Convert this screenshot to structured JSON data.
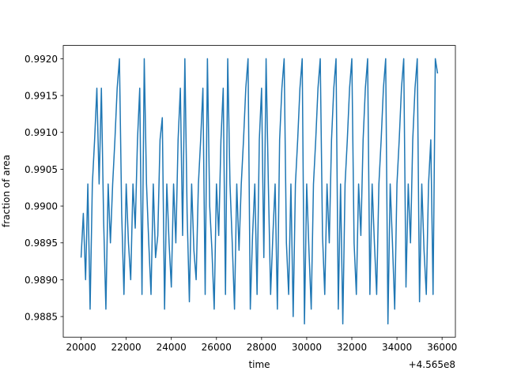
{
  "chart_data": {
    "type": "line",
    "xlabel": "time",
    "ylabel": "fraction of area",
    "x_offset_label": "+4.565e8",
    "xlim": [
      19210,
      36590
    ],
    "ylim": [
      0.98822,
      0.99218
    ],
    "xticks": [
      20000,
      22000,
      24000,
      26000,
      28000,
      30000,
      32000,
      34000,
      36000
    ],
    "yticks": [
      0.9885,
      {
        "value": 0.989,
        "label": "0.9890"
      },
      0.9895,
      {
        "value": 0.99,
        "label": "0.9900"
      },
      0.9905,
      {
        "value": 0.991,
        "label": "0.9910"
      },
      0.9915,
      {
        "value": 0.992,
        "label": "0.9920"
      }
    ],
    "grid": false,
    "series": [
      {
        "color": "#1f77b4",
        "x": [
          20000,
          20100,
          20200,
          20300,
          20400,
          20500,
          20600,
          20700,
          20800,
          20900,
          21000,
          21100,
          21200,
          21300,
          21400,
          21500,
          21600,
          21700,
          21800,
          21900,
          22000,
          22100,
          22200,
          22300,
          22400,
          22500,
          22600,
          22700,
          22800,
          22900,
          23000,
          23100,
          23200,
          23300,
          23400,
          23500,
          23600,
          23700,
          23800,
          23900,
          24000,
          24100,
          24200,
          24300,
          24400,
          24500,
          24600,
          24700,
          24800,
          24900,
          25000,
          25100,
          25200,
          25300,
          25400,
          25500,
          25600,
          25700,
          25800,
          25900,
          26000,
          26100,
          26200,
          26300,
          26400,
          26500,
          26600,
          26700,
          26800,
          26900,
          27000,
          27100,
          27200,
          27300,
          27400,
          27500,
          27600,
          27700,
          27800,
          27900,
          28000,
          28100,
          28200,
          28300,
          28400,
          28500,
          28600,
          28700,
          28800,
          28900,
          29000,
          29100,
          29200,
          29300,
          29400,
          29500,
          29600,
          29700,
          29800,
          29900,
          30000,
          30100,
          30200,
          30300,
          30400,
          30500,
          30600,
          30700,
          30800,
          30900,
          31000,
          31100,
          31200,
          31300,
          31400,
          31500,
          31600,
          31700,
          31800,
          31900,
          32000,
          32100,
          32200,
          32300,
          32400,
          32500,
          32600,
          32700,
          32800,
          32900,
          33000,
          33100,
          33200,
          33300,
          33400,
          33500,
          33600,
          33700,
          33800,
          33900,
          34000,
          34100,
          34200,
          34300,
          34400,
          34500,
          34600,
          34700,
          34800,
          34900,
          35000,
          35100,
          35200,
          35300,
          35400,
          35500,
          35600,
          35700,
          35800
        ],
        "values": [
          0.9893,
          0.9899,
          0.989,
          0.9903,
          0.9886,
          0.9903,
          0.9909,
          0.9916,
          0.9903,
          0.9916,
          0.9898,
          0.9886,
          0.9903,
          0.9895,
          0.9903,
          0.9909,
          0.9916,
          0.992,
          0.9899,
          0.9888,
          0.9903,
          0.9895,
          0.989,
          0.9903,
          0.9897,
          0.9909,
          0.9916,
          0.9888,
          0.992,
          0.9903,
          0.9895,
          0.9888,
          0.9903,
          0.9893,
          0.9896,
          0.9909,
          0.9912,
          0.9886,
          0.9903,
          0.9895,
          0.9889,
          0.9903,
          0.9895,
          0.9909,
          0.9916,
          0.9896,
          0.992,
          0.9899,
          0.9887,
          0.9903,
          0.9894,
          0.989,
          0.9903,
          0.9909,
          0.9916,
          0.9888,
          0.992,
          0.99,
          0.9894,
          0.9886,
          0.9903,
          0.9896,
          0.9909,
          0.9916,
          0.9888,
          0.992,
          0.9903,
          0.9895,
          0.9886,
          0.9903,
          0.9894,
          0.9903,
          0.9909,
          0.9916,
          0.992,
          0.9886,
          0.9896,
          0.9903,
          0.9888,
          0.9909,
          0.9916,
          0.9893,
          0.992,
          0.9903,
          0.9888,
          0.9896,
          0.9903,
          0.9886,
          0.9909,
          0.9916,
          0.992,
          0.9895,
          0.9888,
          0.9903,
          0.9885,
          0.9903,
          0.9909,
          0.9916,
          0.992,
          0.9884,
          0.9903,
          0.9894,
          0.9886,
          0.9903,
          0.9909,
          0.9916,
          0.992,
          0.9896,
          0.9888,
          0.9903,
          0.9895,
          0.9909,
          0.9916,
          0.992,
          0.9886,
          0.9903,
          0.9884,
          0.9903,
          0.9909,
          0.9916,
          0.992,
          0.9895,
          0.9888,
          0.9903,
          0.9896,
          0.9909,
          0.9916,
          0.992,
          0.9888,
          0.9903,
          0.9895,
          0.9888,
          0.9903,
          0.9909,
          0.9916,
          0.992,
          0.9884,
          0.9903,
          0.9895,
          0.9886,
          0.9903,
          0.9909,
          0.9916,
          0.992,
          0.9889,
          0.9903,
          0.9895,
          0.9909,
          0.9916,
          0.992,
          0.9887,
          0.9903,
          0.9894,
          0.9888,
          0.9903,
          0.9909,
          0.9888,
          0.992,
          0.9918
        ]
      }
    ]
  }
}
